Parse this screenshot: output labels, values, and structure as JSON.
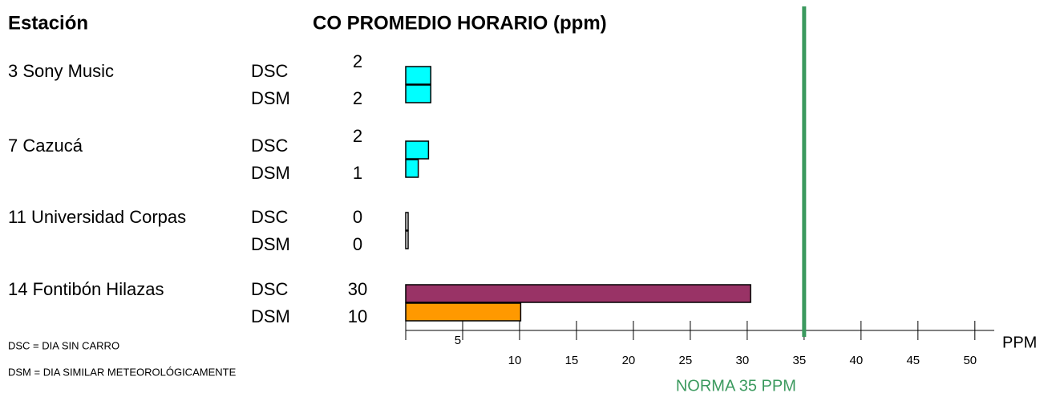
{
  "chart_data": {
    "type": "bar",
    "orientation": "horizontal",
    "header": "Estación",
    "title": "CO PROMEDIO HORARIO  (ppm)",
    "categories": [
      "3  Sony Music",
      "7  Cazucá",
      "11  Universidad Corpas",
      "14  Fontibón Hilazas"
    ],
    "series": [
      {
        "name": "DSC",
        "values": [
          2.2,
          2.0,
          0.2,
          30.3
        ],
        "value_labels": [
          "2",
          "2",
          "0",
          "30"
        ],
        "colors": [
          "#00ffff",
          "#00ffff",
          "#ffffff",
          "#993366"
        ]
      },
      {
        "name": "DSM",
        "values": [
          2.2,
          1.1,
          0.2,
          10.1
        ],
        "value_labels": [
          "2",
          "1",
          "0",
          "10"
        ],
        "colors": [
          "#00ffff",
          "#00ffff",
          "#ffffff",
          "#ff9900"
        ]
      }
    ],
    "xlim": [
      0,
      51
    ],
    "xticks": [
      5,
      10,
      15,
      20,
      25,
      30,
      35,
      40,
      45,
      50
    ],
    "xlabel": "PPM",
    "norm": {
      "value": 35,
      "label": "NORMA 35  PPM",
      "color": "#3c9a5f"
    },
    "notes": [
      "DSC = DIA SIN CARRO",
      "DSM = DIA SIMILAR METEOROLÓGICAMENTE"
    ]
  }
}
